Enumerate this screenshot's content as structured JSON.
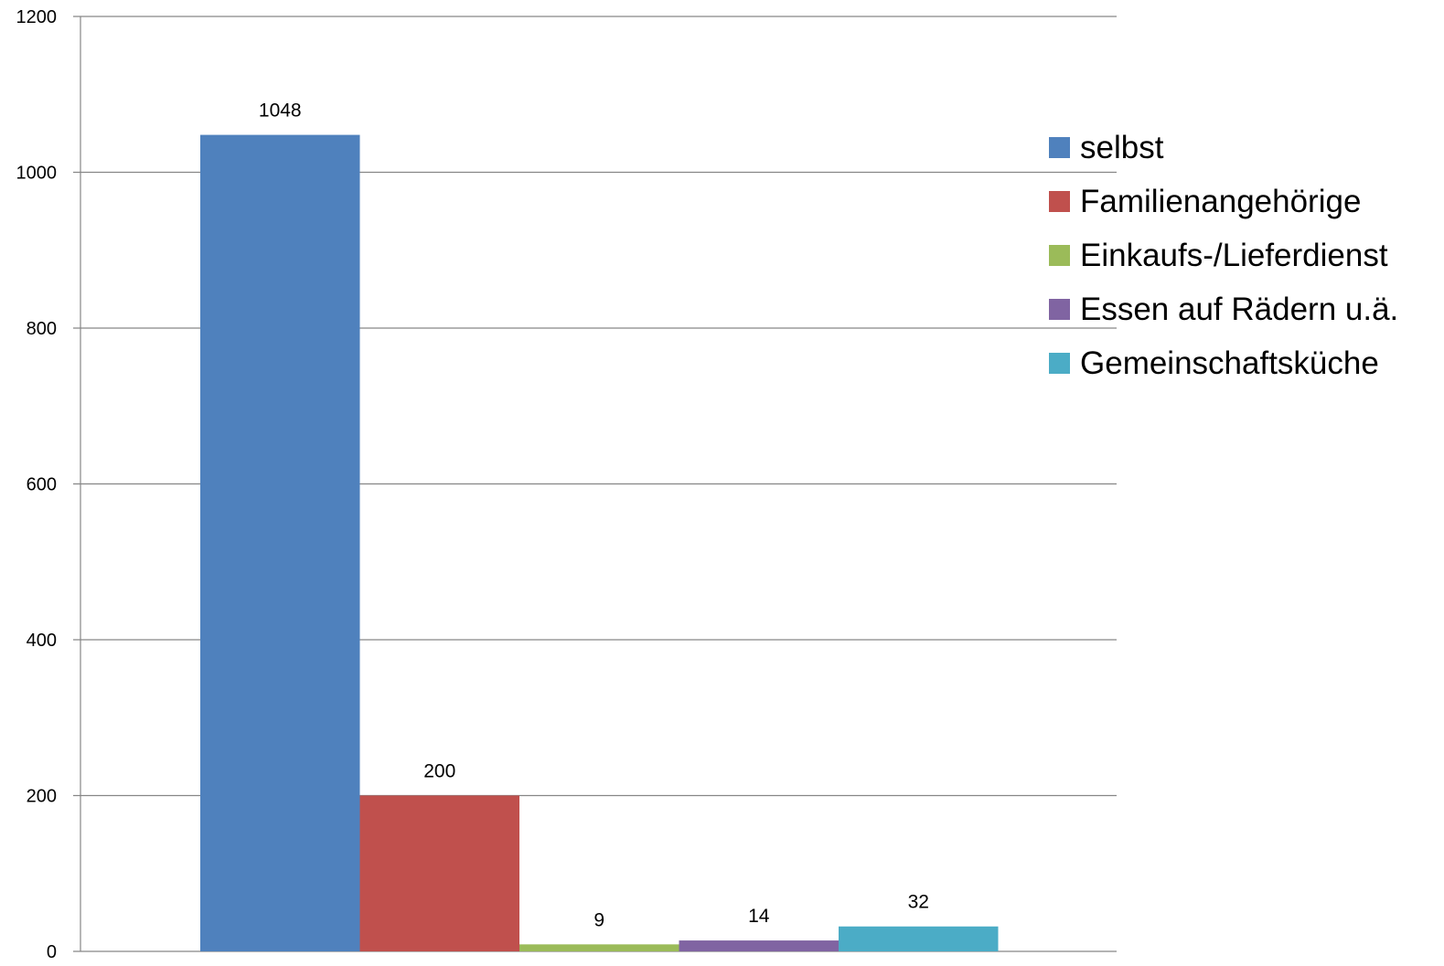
{
  "chart_data": {
    "type": "bar",
    "ylim": [
      0,
      1200
    ],
    "yticks": [
      "0",
      "200",
      "400",
      "600",
      "800",
      "1000",
      "1200"
    ],
    "grid": true,
    "legend_position": "right",
    "series": [
      {
        "name": "selbst",
        "values": [
          1048
        ],
        "color": "#4F81BD"
      },
      {
        "name": "Familienangehörige",
        "values": [
          200
        ],
        "color": "#C0504D"
      },
      {
        "name": "Einkaufs-/Lieferdienst",
        "values": [
          9
        ],
        "color": "#9BBB59"
      },
      {
        "name": "Essen auf Rädern u.ä.",
        "values": [
          14
        ],
        "color": "#8064A2"
      },
      {
        "name": "Gemeinschaftsküche",
        "values": [
          32
        ],
        "color": "#4BACC6"
      }
    ],
    "data_labels": [
      "1048",
      "200",
      "9",
      "14",
      "32"
    ]
  }
}
